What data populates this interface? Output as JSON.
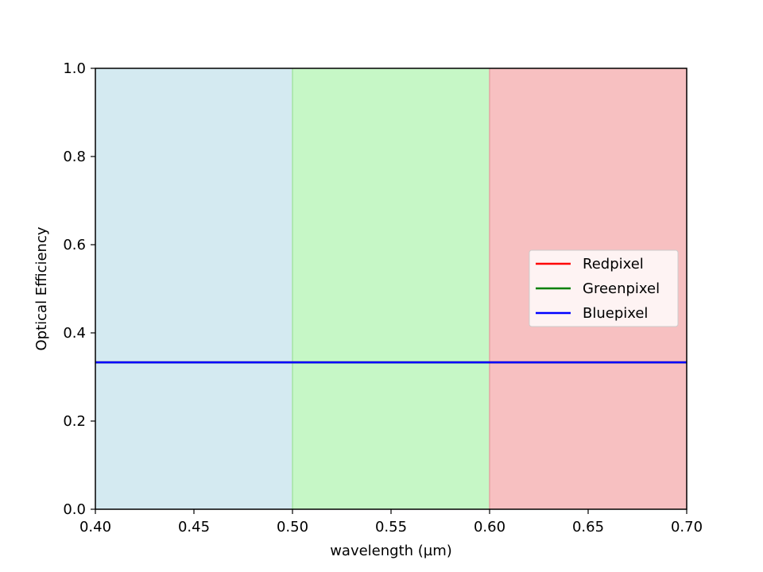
{
  "chart_data": {
    "type": "line",
    "title": "",
    "xlabel": "wavelength (µm)",
    "ylabel": "Optical Efficiency",
    "xlim": [
      0.4,
      0.7
    ],
    "ylim": [
      0.0,
      1.0
    ],
    "grid": false,
    "xticks": [
      0.4,
      0.45,
      0.5,
      0.55,
      0.6,
      0.65,
      0.7
    ],
    "xtick_labels": [
      "0.40",
      "0.45",
      "0.50",
      "0.55",
      "0.60",
      "0.65",
      "0.70"
    ],
    "yticks": [
      0.0,
      0.2,
      0.4,
      0.6,
      0.8,
      1.0
    ],
    "ytick_labels": [
      "0.0",
      "0.2",
      "0.4",
      "0.6",
      "0.8",
      "1.0"
    ],
    "bands": [
      {
        "x": [
          0.4,
          0.5
        ],
        "color": "#d4eaf1"
      },
      {
        "x": [
          0.5,
          0.6
        ],
        "color": "#c6f7c6"
      },
      {
        "x": [
          0.6,
          0.7
        ],
        "color": "#f7c0c1"
      }
    ],
    "band_edges": [
      {
        "x": 0.5,
        "color": "#a4e4a4"
      },
      {
        "x": 0.6,
        "color": "#e6a4a4"
      }
    ],
    "series": [
      {
        "name": "Redpixel",
        "color": "#ff0000",
        "x": [
          0.4,
          0.7
        ],
        "y": [
          0.333,
          0.333
        ]
      },
      {
        "name": "Greenpixel",
        "color": "#008000",
        "x": [
          0.4,
          0.7
        ],
        "y": [
          0.333,
          0.333
        ]
      },
      {
        "name": "Bluepixel",
        "color": "#0000ff",
        "x": [
          0.4,
          0.7
        ],
        "y": [
          0.333,
          0.333
        ]
      }
    ],
    "legend_position": "center-right"
  }
}
